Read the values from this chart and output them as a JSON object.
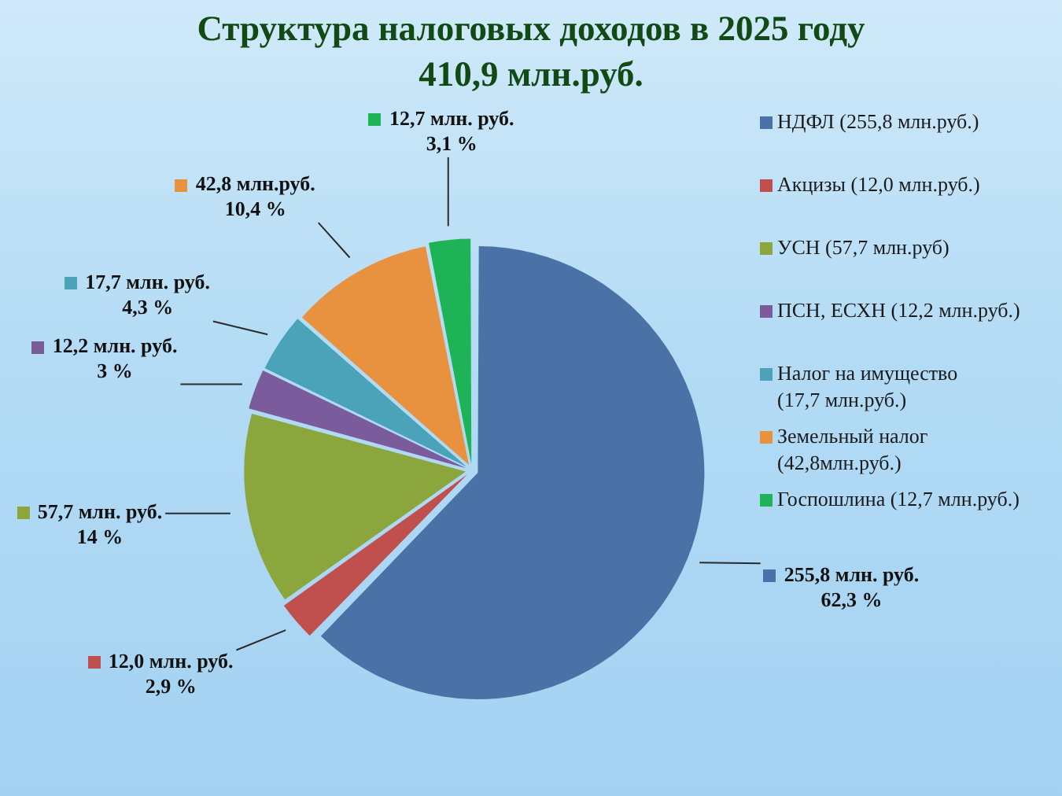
{
  "chart_data": {
    "type": "pie",
    "title": "Структура налоговых доходов в 2025 году",
    "subtitle": "410,9 млн.руб.",
    "categories": [
      "НДФЛ (255,8 млн.руб.)",
      "Акцизы (12,0 млн.руб.)",
      "УСН (57,7 млн.руб)",
      "ПСН, ЕСХН (12,2 млн.руб.)",
      "Налог на имущество (17,7 млн.руб.)",
      "Земельный налог (42,8млн.руб.)",
      "Госпошлина (12,7 млн.руб.)"
    ],
    "values": [
      255.8,
      12.0,
      57.7,
      12.2,
      17.7,
      42.8,
      12.7
    ],
    "colors": [
      "#4a72a6",
      "#c0504d",
      "#8aa63c",
      "#7a5b9b",
      "#4aa3b8",
      "#e8913f",
      "#1eb356"
    ],
    "value_labels": [
      "255,8 млн. руб.\n62,3 %",
      "12,0 млн. руб.\n2,9 %",
      "57,7 млн. руб.\n14 %",
      "12,2 млн. руб.\n3 %",
      "17,7 млн. руб.\n4,3 %",
      "42,8 млн.руб.\n10,4 %",
      "12,7 млн. руб.\n3,1 %"
    ],
    "legend": "right"
  }
}
